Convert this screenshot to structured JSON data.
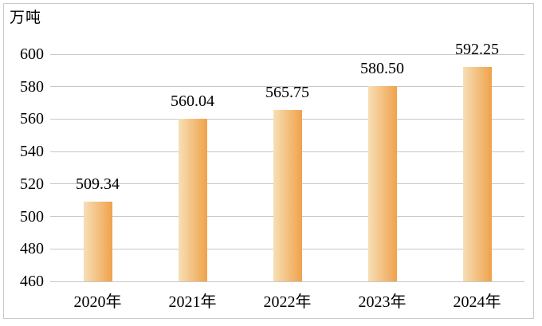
{
  "unit_label": "万吨",
  "colors": {
    "background": "#FFFFFF",
    "frame_border": "#C9C9C9",
    "gridline": "#C8C8C8",
    "text": "#000000",
    "bar_gradient_start": "#F7DFB6",
    "bar_gradient_end": "#EFA24B"
  },
  "chart_data": {
    "type": "bar",
    "title": "",
    "xlabel": "",
    "ylabel": "万吨",
    "categories": [
      "2020年",
      "2021年",
      "2022年",
      "2023年",
      "2024年"
    ],
    "values": [
      509.34,
      560.04,
      565.75,
      580.5,
      592.25
    ],
    "value_labels": [
      "509.34",
      "560.04",
      "565.75",
      "580.50",
      "592.25"
    ],
    "ylim": [
      460,
      600
    ],
    "ytick_step": 20,
    "ytick_labels": [
      "460",
      "480",
      "500",
      "520",
      "540",
      "560",
      "580",
      "600"
    ],
    "grid": "horizontal-only",
    "legend": "none",
    "bar_orientation": "vertical",
    "data_labels_position": "above-bars"
  }
}
